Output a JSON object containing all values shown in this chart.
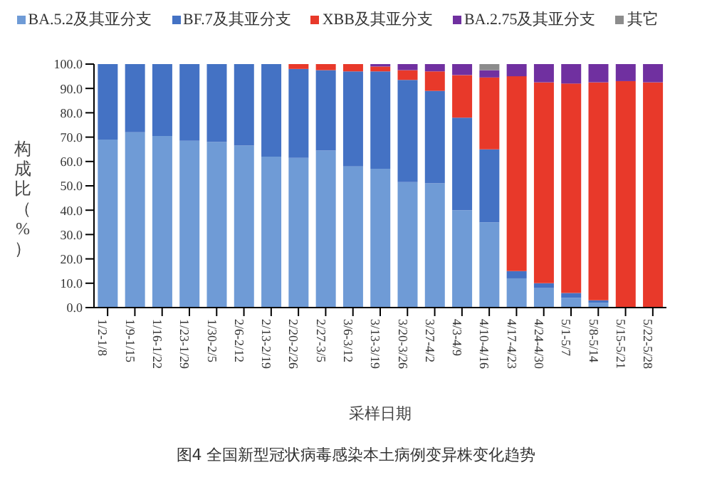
{
  "chart_data": {
    "type": "bar",
    "stacked": true,
    "title": "图4 全国新型冠状病毒感染本土病例变异株变化趋势",
    "xlabel": "采样日期",
    "ylabel": "构成比（%）",
    "categories": [
      "1/2-1/8",
      "1/9-1/15",
      "1/16-1/22",
      "1/23-1/29",
      "1/30-2/5",
      "2/6-2/12",
      "2/13-2/19",
      "2/20-2/26",
      "2/27-3/5",
      "3/6-3/12",
      "3/13-3/19",
      "3/20-3/26",
      "3/27-4/2",
      "4/3-4/9",
      "4/10-4/16",
      "4/17-4/23",
      "4/24-4/30",
      "5/1-5/7",
      "5/8-5/14",
      "5/15-5/21",
      "5/22-5/28"
    ],
    "series": [
      {
        "name": "BA.5.2及其亚分支",
        "color": "#6f9bd6",
        "values": [
          69,
          72,
          70.5,
          68.5,
          68,
          66.5,
          62,
          61.5,
          64.5,
          58,
          57,
          51.5,
          51,
          40,
          35,
          12,
          8,
          4,
          2,
          0,
          0
        ]
      },
      {
        "name": "BF.7及其亚分支",
        "color": "#4472c4",
        "values": [
          31,
          28,
          29.5,
          31.5,
          32,
          33.5,
          38,
          36.5,
          33,
          39,
          40,
          42,
          38,
          38,
          30,
          3,
          2,
          2,
          1,
          0,
          0
        ]
      },
      {
        "name": "XBB及其亚分支",
        "color": "#e8392a",
        "values": [
          0,
          0,
          0,
          0,
          0,
          0,
          0,
          2,
          2.5,
          3,
          2,
          4,
          8,
          17.5,
          29.5,
          80,
          82.5,
          86,
          89.5,
          93,
          92.5
        ]
      },
      {
        "name": "BA.2.75及其亚分支",
        "color": "#7030a0",
        "values": [
          0,
          0,
          0,
          0,
          0,
          0,
          0,
          0,
          0,
          0,
          1,
          2.5,
          3,
          4.5,
          3,
          5,
          7.5,
          8,
          7.5,
          7,
          7.5
        ]
      },
      {
        "name": "其它",
        "color": "#8c8c8c",
        "values": [
          0,
          0,
          0,
          0,
          0,
          0,
          0,
          0,
          0,
          0,
          0,
          0,
          0,
          0,
          2.5,
          0,
          0,
          0,
          0,
          0,
          0
        ]
      }
    ],
    "ylim": [
      0,
      100
    ],
    "yticks": [
      {
        "value": 0,
        "label": "0.0"
      },
      {
        "value": 10,
        "label": "10.0"
      },
      {
        "value": 20,
        "label": "20.0"
      },
      {
        "value": 30,
        "label": "30.0"
      },
      {
        "value": 40,
        "label": "40.0"
      },
      {
        "value": 50,
        "label": "50.0"
      },
      {
        "value": 60,
        "label": "60.0"
      },
      {
        "value": 70,
        "label": "70.0"
      },
      {
        "value": 80,
        "label": "80.0"
      },
      {
        "value": 90,
        "label": "90.0"
      },
      {
        "value": 100,
        "label": "100.0"
      }
    ],
    "legend": "top",
    "grid": false
  }
}
